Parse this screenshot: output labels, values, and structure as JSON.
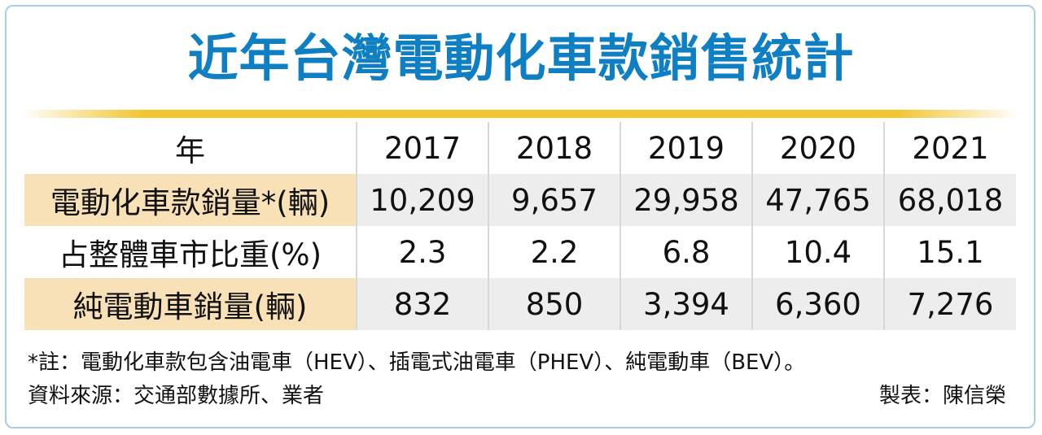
{
  "chart_data": {
    "type": "table",
    "title": "近年台灣電動化車款銷售統計",
    "header": {
      "label": "年",
      "years": [
        "2017",
        "2018",
        "2019",
        "2020",
        "2021"
      ]
    },
    "rows": [
      {
        "label": "電動化車款銷量*(輛)",
        "values": [
          "10,209",
          "9,657",
          "29,958",
          "47,765",
          "68,018"
        ]
      },
      {
        "label": "占整體車市比重(%)",
        "values": [
          "2.3",
          "2.2",
          "6.8",
          "10.4",
          "15.1"
        ]
      },
      {
        "label": "純電動車銷量(輛)",
        "values": [
          "832",
          "850",
          "3,394",
          "6,360",
          "7,276"
        ]
      }
    ],
    "note": "*註：電動化車款包含油電車（HEV）、插電式油電車（PHEV）、純電動車（BEV）。",
    "source": "資料來源：交通部數據所、業者",
    "credit": "製表：陳信榮"
  },
  "colors": {
    "title": "#0f7fc4",
    "rule": "#f2c633",
    "label_shade": "#f8e1b6",
    "row_shade": "#ededed",
    "frame": "#a9cbe4"
  }
}
